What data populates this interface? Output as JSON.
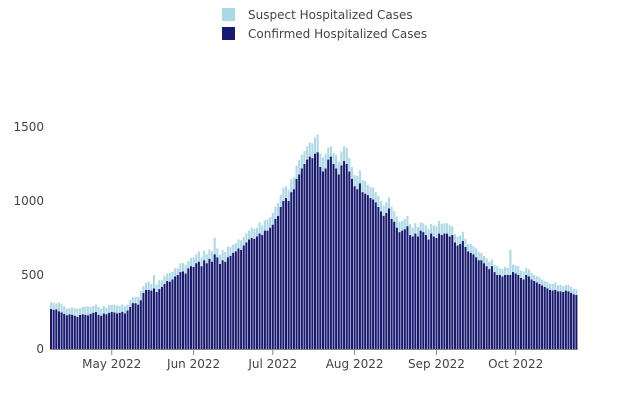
{
  "chart_data": {
    "type": "bar",
    "stacked": true,
    "title": "",
    "xlabel": "",
    "ylabel": "",
    "start_date": "2022-04-08",
    "ylim": [
      0,
      1600
    ],
    "yticks": [
      0,
      500,
      1000,
      1500
    ],
    "xticks": [
      {
        "date": "2022-05-01",
        "label": "May 2022"
      },
      {
        "date": "2022-06-01",
        "label": "Jun 2022"
      },
      {
        "date": "2022-07-01",
        "label": "Jul 2022"
      },
      {
        "date": "2022-08-01",
        "label": "Aug 2022"
      },
      {
        "date": "2022-09-01",
        "label": "Sep 2022"
      },
      {
        "date": "2022-10-01",
        "label": "Oct 2022"
      }
    ],
    "legend_position": "top-center",
    "series": [
      {
        "name": "Confirmed Hospitalized Cases",
        "color": "#191970",
        "values": [
          270,
          265,
          268,
          255,
          248,
          238,
          228,
          235,
          232,
          225,
          218,
          230,
          235,
          232,
          228,
          238,
          245,
          250,
          232,
          225,
          240,
          235,
          245,
          250,
          248,
          240,
          245,
          252,
          240,
          260,
          285,
          310,
          310,
          300,
          330,
          380,
          400,
          400,
          395,
          410,
          385,
          405,
          420,
          440,
          460,
          455,
          470,
          490,
          500,
          520,
          525,
          510,
          545,
          560,
          555,
          580,
          590,
          560,
          600,
          580,
          610,
          590,
          640,
          620,
          575,
          600,
          590,
          620,
          630,
          650,
          660,
          680,
          670,
          700,
          720,
          740,
          750,
          745,
          760,
          780,
          770,
          800,
          800,
          820,
          840,
          880,
          900,
          960,
          1000,
          1020,
          1000,
          1060,
          1080,
          1150,
          1180,
          1220,
          1250,
          1280,
          1300,
          1290,
          1320,
          1330,
          1230,
          1200,
          1220,
          1280,
          1300,
          1250,
          1220,
          1180,
          1240,
          1270,
          1250,
          1200,
          1150,
          1100,
          1080,
          1120,
          1060,
          1050,
          1040,
          1020,
          1010,
          990,
          960,
          930,
          900,
          920,
          950,
          880,
          860,
          820,
          790,
          800,
          810,
          830,
          770,
          760,
          780,
          760,
          800,
          790,
          770,
          740,
          780,
          760,
          750,
          780,
          770,
          780,
          780,
          760,
          770,
          720,
          700,
          710,
          730,
          690,
          660,
          650,
          640,
          620,
          600,
          600,
          580,
          560,
          540,
          560,
          520,
          500,
          500,
          490,
          500,
          500,
          500,
          520,
          510,
          500,
          480,
          470,
          500,
          490,
          470,
          460,
          450,
          440,
          430,
          420,
          410,
          400,
          395,
          400,
          390,
          390,
          385,
          395,
          390,
          380,
          370,
          365
        ]
      },
      {
        "name": "Suspect Hospitalized Cases",
        "color": "#add8e6",
        "values": [
          45,
          48,
          40,
          60,
          55,
          50,
          45,
          40,
          48,
          50,
          55,
          45,
          50,
          55,
          60,
          48,
          45,
          50,
          52,
          48,
          50,
          45,
          52,
          48,
          50,
          55,
          45,
          50,
          48,
          40,
          45,
          40,
          42,
          50,
          60,
          45,
          50,
          55,
          45,
          90,
          50,
          60,
          45,
          55,
          50,
          60,
          52,
          55,
          45,
          60,
          55,
          60,
          50,
          55,
          65,
          60,
          70,
          58,
          65,
          60,
          62,
          70,
          110,
          60,
          62,
          70,
          65,
          72,
          60,
          55,
          55,
          60,
          65,
          58,
          62,
          60,
          70,
          65,
          60,
          75,
          65,
          70,
          75,
          70,
          80,
          82,
          85,
          80,
          90,
          80,
          78,
          85,
          80,
          90,
          95,
          92,
          88,
          90,
          95,
          100,
          110,
          120,
          90,
          95,
          100,
          80,
          70,
          75,
          90,
          85,
          95,
          100,
          110,
          90,
          80,
          75,
          90,
          85,
          80,
          85,
          70,
          75,
          80,
          70,
          75,
          70,
          68,
          72,
          75,
          80,
          70,
          75,
          70,
          65,
          68,
          70,
          72,
          60,
          70,
          65,
          55,
          60,
          65,
          70,
          65,
          75,
          80,
          85,
          75,
          70,
          70,
          75,
          60,
          55,
          60,
          58,
          62,
          55,
          50,
          60,
          55,
          60,
          55,
          50,
          48,
          52,
          50,
          45,
          48,
          60,
          45,
          50,
          55,
          48,
          170,
          50,
          55,
          60,
          50,
          55,
          50,
          48,
          45,
          40,
          42,
          45,
          40,
          38,
          42,
          40,
          45,
          50,
          42,
          45,
          40,
          38,
          42,
          40,
          35,
          38
        ]
      }
    ]
  }
}
